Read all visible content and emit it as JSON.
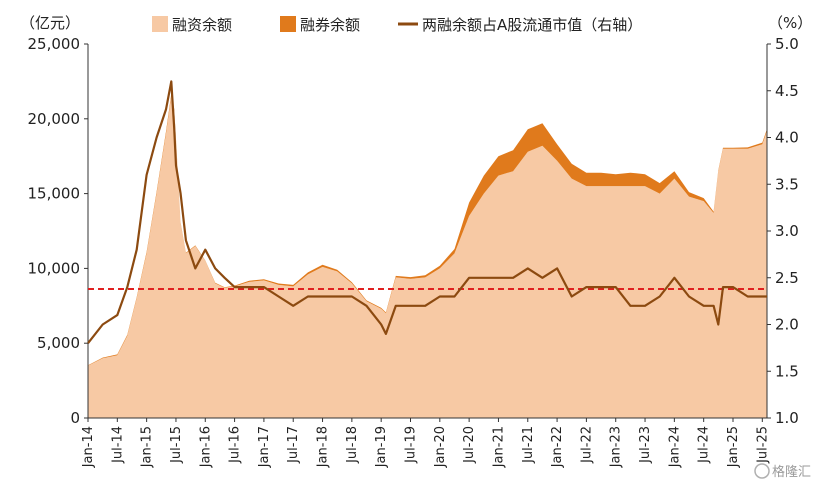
{
  "chart_data": {
    "type": "area",
    "left_axis": {
      "unit_label": "（亿元）",
      "range": [
        0,
        25000
      ],
      "ticks": [
        "0",
        "5,000",
        "10,000",
        "15,000",
        "20,000",
        "25,000"
      ]
    },
    "right_axis": {
      "unit_label": "（%）",
      "range": [
        1.0,
        5.0
      ],
      "ticks": [
        "1.0",
        "1.5",
        "2.0",
        "2.5",
        "3.0",
        "3.5",
        "4.0",
        "4.5",
        "5.0"
      ]
    },
    "x_ticks": [
      "Jan-14",
      "Jul-14",
      "Jan-15",
      "Jul-15",
      "Jan-16",
      "Jul-16",
      "Jan-17",
      "Jul-17",
      "Jan-18",
      "Jul-18",
      "Jan-19",
      "Jul-19",
      "Jan-20",
      "Jul-20",
      "Jan-21",
      "Jul-21",
      "Jan-22",
      "Jul-22",
      "Jan-23",
      "Jul-23",
      "Jan-24",
      "Jul-24",
      "Jan-25",
      "Jul-25"
    ],
    "legend": [
      {
        "name": "融资余额",
        "color": "#f7c9a4",
        "kind": "area"
      },
      {
        "name": "融券余额",
        "color": "#e07a1c",
        "kind": "area"
      },
      {
        "name": "两融余额占A股流通市值（右轴）",
        "color": "#8c4a10",
        "kind": "line"
      }
    ],
    "reference_line": {
      "axis": "right",
      "value": 2.38,
      "color": "#e02020",
      "style": "dashed"
    },
    "x": [
      2014.0,
      2014.25,
      2014.5,
      2014.67,
      2014.83,
      2015.0,
      2015.17,
      2015.33,
      2015.42,
      2015.47,
      2015.5,
      2015.58,
      2015.67,
      2015.83,
      2016.0,
      2016.17,
      2016.33,
      2016.5,
      2016.75,
      2017.0,
      2017.25,
      2017.5,
      2017.75,
      2018.0,
      2018.25,
      2018.5,
      2018.75,
      2019.0,
      2019.08,
      2019.25,
      2019.5,
      2019.75,
      2020.0,
      2020.25,
      2020.5,
      2020.75,
      2021.0,
      2021.25,
      2021.5,
      2021.75,
      2022.0,
      2022.25,
      2022.5,
      2022.75,
      2023.0,
      2023.25,
      2023.5,
      2023.75,
      2024.0,
      2024.25,
      2024.5,
      2024.67,
      2024.75,
      2024.83,
      2025.0,
      2025.25,
      2025.5,
      2025.58
    ],
    "series": [
      {
        "name": "融资余额",
        "values": [
          3500,
          4000,
          4200,
          5500,
          8000,
          11000,
          15000,
          19000,
          21500,
          20500,
          18500,
          13000,
          11000,
          11500,
          10500,
          9000,
          8700,
          8800,
          9100,
          9200,
          8900,
          8800,
          9600,
          10100,
          9800,
          9000,
          7800,
          7300,
          7000,
          9400,
          9300,
          9400,
          10000,
          11000,
          13500,
          15000,
          16200,
          16500,
          17800,
          18200,
          17200,
          16000,
          15500,
          15500,
          15500,
          15500,
          15500,
          15000,
          16000,
          14800,
          14500,
          13700,
          16500,
          18000,
          18000,
          18000,
          18300,
          19200
        ]
      },
      {
        "name": "融券余额",
        "values": [
          30,
          40,
          50,
          60,
          80,
          100,
          120,
          150,
          170,
          160,
          130,
          60,
          40,
          40,
          30,
          40,
          40,
          50,
          70,
          80,
          90,
          100,
          130,
          140,
          110,
          80,
          60,
          60,
          60,
          100,
          120,
          140,
          180,
          300,
          900,
          1200,
          1300,
          1400,
          1500,
          1500,
          1100,
          1000,
          900,
          900,
          800,
          900,
          800,
          700,
          500,
          300,
          200,
          100,
          60,
          60,
          60,
          90,
          110,
          120
        ]
      },
      {
        "name": "两融余额占A股流通市值（右轴）",
        "values": [
          1.8,
          2.0,
          2.1,
          2.4,
          2.8,
          3.6,
          4.0,
          4.3,
          4.6,
          4.1,
          3.7,
          3.4,
          2.9,
          2.6,
          2.8,
          2.6,
          2.5,
          2.4,
          2.4,
          2.4,
          2.3,
          2.2,
          2.3,
          2.3,
          2.3,
          2.3,
          2.2,
          2.0,
          1.9,
          2.2,
          2.2,
          2.2,
          2.3,
          2.3,
          2.5,
          2.5,
          2.5,
          2.5,
          2.6,
          2.5,
          2.6,
          2.3,
          2.4,
          2.4,
          2.4,
          2.2,
          2.2,
          2.3,
          2.5,
          2.3,
          2.2,
          2.2,
          2.0,
          2.4,
          2.4,
          2.3,
          2.3,
          2.3
        ]
      }
    ]
  },
  "watermark": "格隆汇"
}
